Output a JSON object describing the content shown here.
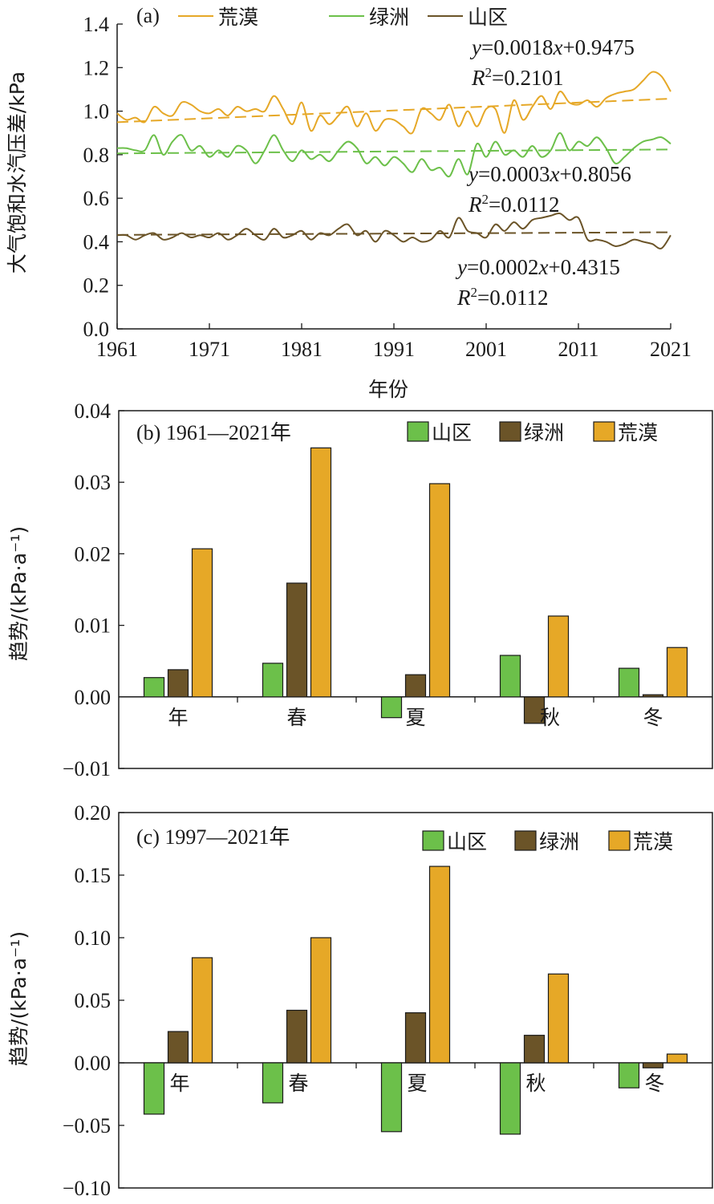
{
  "chart_data": [
    {
      "panel": "(a)",
      "type": "line",
      "xlabel": "年份",
      "ylabel": "大气饱和水汽压差/kPa",
      "xlim": [
        1961,
        2021
      ],
      "ylim": [
        0.0,
        1.4
      ],
      "xticks": [
        "1961",
        "1971",
        "1981",
        "1991",
        "2001",
        "2011",
        "2021"
      ],
      "yticks": [
        "0.0",
        "0.2",
        "0.4",
        "0.6",
        "0.8",
        "1.0",
        "1.2",
        "1.4"
      ],
      "legend_position": "top",
      "x": [
        1961,
        1962,
        1963,
        1964,
        1965,
        1966,
        1967,
        1968,
        1969,
        1970,
        1971,
        1972,
        1973,
        1974,
        1975,
        1976,
        1977,
        1978,
        1979,
        1980,
        1981,
        1982,
        1983,
        1984,
        1985,
        1986,
        1987,
        1988,
        1989,
        1990,
        1991,
        1992,
        1993,
        1994,
        1995,
        1996,
        1997,
        1998,
        1999,
        2000,
        2001,
        2002,
        2003,
        2004,
        2005,
        2006,
        2007,
        2008,
        2009,
        2010,
        2011,
        2012,
        2013,
        2014,
        2015,
        2016,
        2017,
        2018,
        2019,
        2020,
        2021
      ],
      "series": [
        {
          "name": "荒漠",
          "color": "#E6A827",
          "values": [
            0.99,
            0.96,
            0.97,
            0.95,
            1.02,
            0.99,
            0.98,
            1.04,
            1.03,
            1.0,
            0.99,
            1.01,
            0.98,
            1.02,
            1.0,
            1.01,
            1.0,
            1.07,
            1.01,
            0.94,
            1.04,
            0.91,
            0.98,
            0.94,
            0.98,
            1.02,
            0.93,
            0.99,
            0.91,
            0.96,
            0.96,
            0.93,
            0.9,
            1.01,
            0.99,
            0.96,
            1.03,
            0.93,
            1.0,
            0.93,
            1.01,
            1.01,
            0.9,
            1.05,
            0.96,
            1.02,
            1.07,
            1.01,
            1.09,
            1.04,
            1.03,
            1.05,
            1.02,
            1.06,
            1.08,
            1.09,
            1.1,
            1.14,
            1.18,
            1.16,
            1.09
          ]
        },
        {
          "name": "绿洲",
          "color": "#6CC04A",
          "values": [
            0.83,
            0.83,
            0.82,
            0.82,
            0.89,
            0.8,
            0.86,
            0.89,
            0.82,
            0.84,
            0.79,
            0.82,
            0.79,
            0.84,
            0.82,
            0.76,
            0.82,
            0.89,
            0.82,
            0.77,
            0.82,
            0.78,
            0.8,
            0.77,
            0.82,
            0.86,
            0.83,
            0.76,
            0.79,
            0.75,
            0.79,
            0.76,
            0.72,
            0.78,
            0.73,
            0.74,
            0.7,
            0.78,
            0.71,
            0.85,
            0.79,
            0.86,
            0.8,
            0.82,
            0.79,
            0.84,
            0.79,
            0.82,
            0.9,
            0.82,
            0.86,
            0.84,
            0.88,
            0.83,
            0.76,
            0.79,
            0.83,
            0.86,
            0.87,
            0.88,
            0.85
          ]
        },
        {
          "name": "山区",
          "color": "#6B5428",
          "values": [
            0.43,
            0.43,
            0.41,
            0.43,
            0.44,
            0.41,
            0.42,
            0.44,
            0.42,
            0.43,
            0.42,
            0.44,
            0.41,
            0.43,
            0.46,
            0.43,
            0.41,
            0.46,
            0.42,
            0.43,
            0.45,
            0.41,
            0.44,
            0.43,
            0.46,
            0.48,
            0.43,
            0.45,
            0.4,
            0.45,
            0.43,
            0.4,
            0.42,
            0.4,
            0.41,
            0.45,
            0.42,
            0.51,
            0.45,
            0.44,
            0.42,
            0.48,
            0.45,
            0.49,
            0.46,
            0.5,
            0.51,
            0.52,
            0.53,
            0.5,
            0.51,
            0.41,
            0.41,
            0.4,
            0.38,
            0.39,
            0.41,
            0.4,
            0.39,
            0.37,
            0.43
          ]
        }
      ],
      "trend_lines": [
        {
          "series": "荒漠",
          "slope": 0.0018,
          "intercept": 0.9475,
          "equation_prefix": "y",
          "equation_rest": "=0.0018",
          "equation_x": "x",
          "equation_tail": "+0.9475",
          "r2_label": "R",
          "r2_sup": "2",
          "r2_value": "=0.2101"
        },
        {
          "series": "绿洲",
          "slope": 0.0003,
          "intercept": 0.8056,
          "equation_prefix": "y",
          "equation_rest": "=0.0003",
          "equation_x": "x",
          "equation_tail": "+0.8056",
          "r2_label": "R",
          "r2_sup": "2",
          "r2_value": "=0.0112"
        },
        {
          "series": "山区",
          "slope": 0.0002,
          "intercept": 0.4315,
          "equation_prefix": "y",
          "equation_rest": "=0.0002",
          "equation_x": "x",
          "equation_tail": "+0.4315",
          "r2_label": "R",
          "r2_sup": "2",
          "r2_value": "=0.0112"
        }
      ]
    },
    {
      "panel": "(b) 1961—2021年",
      "type": "bar",
      "ylabel": "趋势/(kPa·a⁻¹)",
      "ylim": [
        -0.01,
        0.04
      ],
      "yticks": [
        "−0.01",
        "0.00",
        "0.01",
        "0.02",
        "0.03",
        "0.04"
      ],
      "categories": [
        "年",
        "春",
        "夏",
        "秋",
        "冬"
      ],
      "legend_position": "top-right",
      "series": [
        {
          "name": "山区",
          "color": "#6CC04A",
          "values": [
            0.0027,
            0.0047,
            -0.0029,
            0.0058,
            0.004
          ]
        },
        {
          "name": "绿洲",
          "color": "#6B5428",
          "values": [
            0.0038,
            0.0159,
            0.0031,
            -0.0037,
            0.0003
          ]
        },
        {
          "name": "荒漠",
          "color": "#E6A827",
          "values": [
            0.0207,
            0.0348,
            0.0298,
            0.0113,
            0.0069
          ]
        }
      ]
    },
    {
      "panel": "(c) 1997—2021年",
      "type": "bar",
      "ylabel": "趋势/(kPa·a⁻¹)",
      "ylim": [
        -0.1,
        0.2
      ],
      "yticks": [
        "−0.10",
        "−0.05",
        "0.00",
        "0.05",
        "0.10",
        "0.15",
        "0.20"
      ],
      "categories": [
        "年",
        "春",
        "夏",
        "秋",
        "冬"
      ],
      "legend_position": "top-right",
      "series": [
        {
          "name": "山区",
          "color": "#6CC04A",
          "values": [
            -0.041,
            -0.032,
            -0.055,
            -0.057,
            -0.02
          ]
        },
        {
          "name": "绿洲",
          "color": "#6B5428",
          "values": [
            0.025,
            0.042,
            0.04,
            0.022,
            -0.004
          ]
        },
        {
          "name": "荒漠",
          "color": "#E6A827",
          "values": [
            0.084,
            0.1,
            0.157,
            0.071,
            0.007
          ]
        }
      ]
    }
  ]
}
